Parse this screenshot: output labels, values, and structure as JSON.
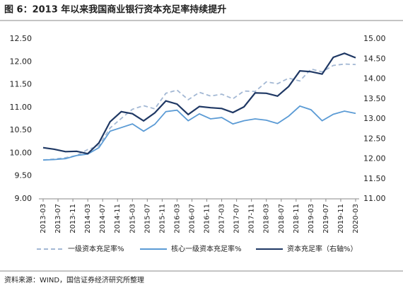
{
  "chart_data": {
    "type": "line",
    "title": "图 6：2013 年以来我国商业银行资本充足率持续提升",
    "source": "资料来源：WIND，国信证券经济研究所整理",
    "x": [
      "2013-03",
      "2013-06",
      "2013-09",
      "2013-12",
      "2014-03",
      "2014-06",
      "2014-09",
      "2014-12",
      "2015-03",
      "2015-06",
      "2015-09",
      "2015-12",
      "2016-03",
      "2016-06",
      "2016-09",
      "2016-12",
      "2017-03",
      "2017-06",
      "2017-09",
      "2017-12",
      "2018-03",
      "2018-06",
      "2018-09",
      "2018-12",
      "2019-03",
      "2019-06",
      "2019-09",
      "2019-12",
      "2020-03"
    ],
    "series": [
      {
        "name": "一级资本充足率%",
        "color": "#a3b8d4",
        "dash": true,
        "axis": "y",
        "values": [
          9.85,
          9.87,
          9.9,
          9.95,
          10.08,
          10.16,
          10.55,
          10.76,
          10.96,
          11.04,
          10.97,
          11.31,
          11.38,
          11.17,
          11.33,
          11.25,
          11.29,
          11.19,
          11.36,
          11.35,
          11.56,
          11.52,
          11.64,
          11.58,
          11.84,
          11.78,
          11.92,
          11.95,
          11.94
        ]
      },
      {
        "name": "核心一级资本充足率%",
        "color": "#5b9bd5",
        "dash": false,
        "axis": "y",
        "values": [
          9.85,
          9.86,
          9.88,
          9.95,
          9.98,
          10.12,
          10.48,
          10.56,
          10.64,
          10.48,
          10.63,
          10.91,
          10.94,
          10.71,
          10.86,
          10.75,
          10.78,
          10.64,
          10.71,
          10.75,
          10.72,
          10.65,
          10.81,
          11.03,
          10.95,
          10.71,
          10.85,
          10.92,
          10.87
        ]
      },
      {
        "name": "资本充足率（右轴%）",
        "color": "#1f3864",
        "dash": false,
        "axis": "y2",
        "values": [
          12.28,
          12.24,
          12.18,
          12.19,
          12.13,
          12.4,
          12.93,
          13.18,
          13.13,
          12.95,
          13.15,
          13.45,
          13.37,
          13.11,
          13.31,
          13.28,
          13.26,
          13.16,
          13.3,
          13.65,
          13.64,
          13.57,
          13.81,
          14.2,
          14.18,
          14.12,
          14.54,
          14.64,
          14.53
        ]
      }
    ],
    "xticks": [
      "2013-03",
      "2013-07",
      "2013-11",
      "2014-03",
      "2014-07",
      "2014-11",
      "2015-03",
      "2015-07",
      "2015-11",
      "2016-03",
      "2016-07",
      "2016-11",
      "2017-03",
      "2017-07",
      "2017-11",
      "2018-03",
      "2018-07",
      "2018-11",
      "2019-03",
      "2019-07",
      "2019-11",
      "2020-03"
    ],
    "ylim": [
      9,
      12.5
    ],
    "yticks": [
      {
        "value": 9,
        "label": "9.00"
      },
      {
        "value": 9.5,
        "label": "9.50"
      },
      {
        "value": 10,
        "label": "10.00"
      },
      {
        "value": 10.5,
        "label": "10.50"
      },
      {
        "value": 11,
        "label": "11.00"
      },
      {
        "value": 11.5,
        "label": "11.50"
      },
      {
        "value": 12,
        "label": "12.00"
      },
      {
        "value": 12.5,
        "label": "12.50"
      }
    ],
    "y2lim": [
      11,
      15
    ],
    "y2ticks": [
      {
        "value": 11,
        "label": "11.00"
      },
      {
        "value": 11.5,
        "label": "11.50"
      },
      {
        "value": 12,
        "label": "12.00"
      },
      {
        "value": 12.5,
        "label": "12.50"
      },
      {
        "value": 13,
        "label": "13.00"
      },
      {
        "value": 13.5,
        "label": "13.50"
      },
      {
        "value": 14,
        "label": "14.00"
      },
      {
        "value": 14.5,
        "label": "14.50"
      },
      {
        "value": 15,
        "label": "15.00"
      }
    ],
    "legend": "bottom"
  }
}
